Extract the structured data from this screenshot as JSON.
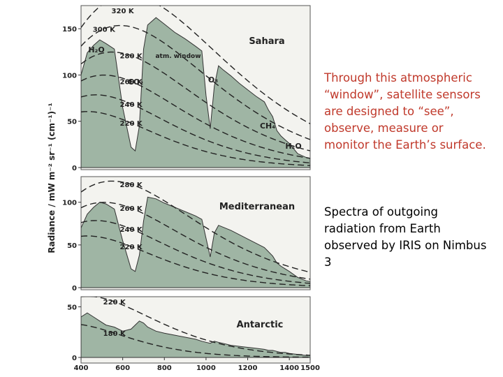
{
  "slide": {
    "note_red": "Through this atmospheric “window”, satellite sensors are designed to “see”, observe, measure or monitor the Earth’s surface.",
    "note_black": "Spectra of outgoing radiation from Earth observed by IRIS on Nimbus 3"
  },
  "colors": {
    "spectrum_fill": "#9fb5a4",
    "panel_bg": "#f3f3ef",
    "text_red": "#c0392b"
  },
  "chart_data": {
    "type": "line",
    "ylabel": "Radiance / mW m⁻² sr⁻¹ (cm⁻¹)⁻¹",
    "x_ticks": [
      "400",
      "600",
      "800",
      "1000",
      "1200",
      "1400",
      "1500"
    ],
    "xlim": [
      400,
      1500
    ],
    "panels": [
      {
        "name": "Sahara",
        "ylim": [
          0,
          175
        ],
        "y_ticks": [
          "0",
          "50",
          "100",
          "150"
        ],
        "blackbody_curves": [
          "320 K",
          "300 K",
          "280 K",
          "260 K",
          "240 K",
          "220 K"
        ],
        "labels": [
          "H₂O",
          "CO₂",
          "atm. window",
          "O₃",
          "CH₄",
          "H₂O"
        ],
        "spectrum": {
          "x": [
            400,
            430,
            460,
            490,
            520,
            560,
            600,
            640,
            660,
            680,
            700,
            720,
            760,
            800,
            850,
            900,
            950,
            980,
            1000,
            1020,
            1040,
            1060,
            1080,
            1120,
            1160,
            1200,
            1240,
            1280,
            1300,
            1320,
            1340,
            1360,
            1380,
            1400,
            1440,
            1480,
            1500
          ],
          "y": [
            100,
            124,
            132,
            138,
            134,
            128,
            65,
            22,
            18,
            45,
            128,
            154,
            162,
            155,
            146,
            139,
            131,
            126,
            78,
            42,
            88,
            110,
            106,
            99,
            91,
            84,
            77,
            71,
            62,
            55,
            40,
            34,
            30,
            26,
            15,
            11,
            10
          ]
        }
      },
      {
        "name": "Mediterranean",
        "ylim": [
          0,
          130
        ],
        "y_ticks": [
          "0",
          "50",
          "100"
        ],
        "blackbody_curves": [
          "280 K",
          "260 K",
          "240 K",
          "220 K"
        ],
        "labels": [],
        "spectrum": {
          "x": [
            400,
            430,
            460,
            490,
            520,
            560,
            600,
            640,
            660,
            680,
            700,
            720,
            760,
            800,
            850,
            900,
            950,
            980,
            1000,
            1020,
            1040,
            1060,
            1080,
            1120,
            1160,
            1200,
            1240,
            1280,
            1300,
            1320,
            1340,
            1360,
            1380,
            1400,
            1440,
            1480,
            1500
          ],
          "y": [
            70,
            86,
            94,
            100,
            98,
            92,
            55,
            22,
            19,
            38,
            78,
            106,
            104,
            99,
            94,
            89,
            84,
            80,
            58,
            36,
            64,
            73,
            71,
            67,
            62,
            57,
            52,
            47,
            42,
            37,
            29,
            25,
            22,
            19,
            12,
            8,
            7
          ]
        }
      },
      {
        "name": "Antarctic",
        "ylim": [
          0,
          60
        ],
        "y_ticks": [
          "0",
          "50"
        ],
        "blackbody_curves": [
          "220 K",
          "180 K"
        ],
        "labels": [],
        "spectrum": {
          "x": [
            400,
            430,
            460,
            490,
            520,
            560,
            600,
            640,
            660,
            680,
            700,
            720,
            760,
            800,
            850,
            900,
            950,
            980,
            1000,
            1020,
            1040,
            1060,
            1080,
            1120,
            1160,
            1200,
            1240,
            1280,
            1300,
            1320,
            1340,
            1360,
            1380,
            1400,
            1440,
            1480,
            1500
          ],
          "y": [
            40,
            44,
            40,
            36,
            32,
            30,
            26,
            28,
            32,
            36,
            34,
            30,
            26,
            24,
            22,
            20,
            18,
            16,
            15,
            14,
            16,
            15,
            14,
            12,
            11,
            10,
            9,
            8,
            7,
            7,
            6,
            5,
            5,
            4,
            3,
            2,
            2
          ]
        }
      }
    ]
  }
}
